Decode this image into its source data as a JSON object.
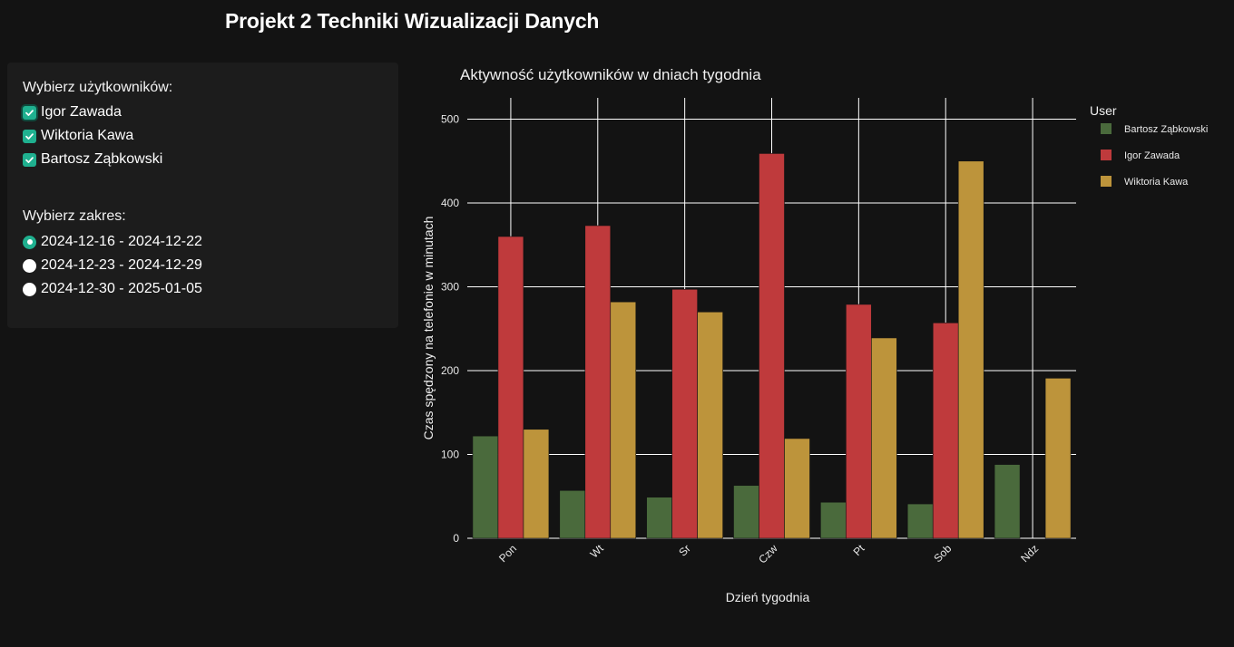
{
  "header": {
    "title": "Projekt 2 Techniki Wizualizacji Danych"
  },
  "controls": {
    "users_label": "Wybierz użytkowników:",
    "users": [
      {
        "label": "Igor Zawada",
        "checked": true
      },
      {
        "label": "Wiktoria Kawa",
        "checked": true
      },
      {
        "label": "Bartosz Ząbkowski",
        "checked": true
      }
    ],
    "range_label": "Wybierz zakres:",
    "ranges": [
      {
        "label": "2024-12-16 - 2024-12-22",
        "selected": true
      },
      {
        "label": "2024-12-23 - 2024-12-29",
        "selected": false
      },
      {
        "label": "2024-12-30 - 2025-01-05",
        "selected": false
      }
    ],
    "accent_color": "#1fb08f"
  },
  "chart_data": {
    "type": "bar",
    "title": "Aktywność użytkowników w dniach tygodnia",
    "xlabel": "Dzień tygodnia",
    "ylabel": "Czas spędzony na telefonie w minutach",
    "categories": [
      "Pon",
      "Wt",
      "Sr",
      "Czw",
      "Pt",
      "Sob",
      "Ndz"
    ],
    "ylim": [
      0,
      520
    ],
    "yticks": [
      0,
      100,
      200,
      300,
      400,
      500
    ],
    "grid": true,
    "legend_title": "User",
    "legend_position": "right",
    "series": [
      {
        "name": "Bartosz Ząbkowski",
        "color": "#4a6a3c",
        "values": [
          122,
          57,
          49,
          63,
          43,
          41,
          88
        ]
      },
      {
        "name": "Igor Zawada",
        "color": "#bf3a3c",
        "values": [
          360,
          373,
          297,
          459,
          279,
          257,
          0
        ]
      },
      {
        "name": "Wiktoria Kawa",
        "color": "#bd943b",
        "values": [
          130,
          282,
          270,
          119,
          239,
          450,
          191
        ]
      }
    ]
  }
}
